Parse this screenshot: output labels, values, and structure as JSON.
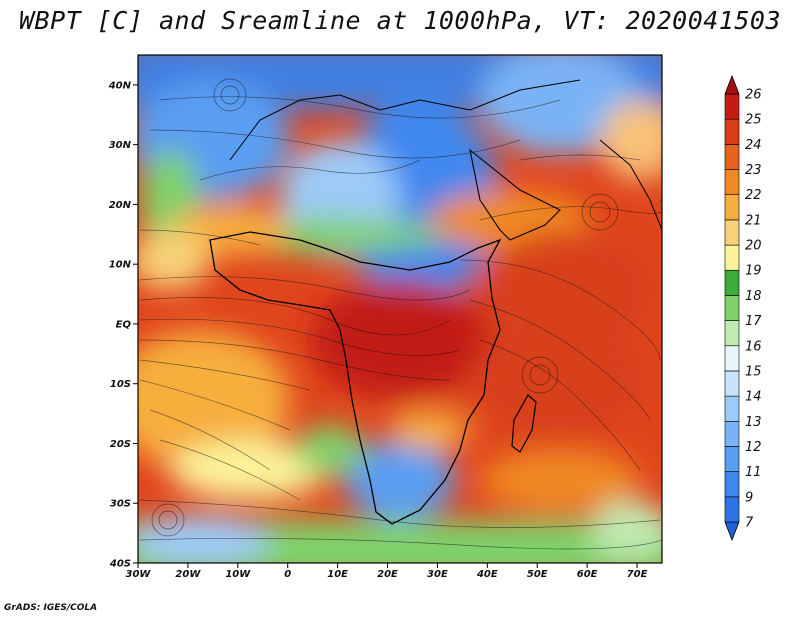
{
  "title": "WBPT [C] and Sreamline at 1000hPa, VT: 2020041503",
  "credit": "GrADS: IGES/COLA",
  "map": {
    "lon_range": [
      -30,
      75
    ],
    "lat_range": [
      -40,
      45
    ],
    "lon_ticks": [
      "30W",
      "20W",
      "10W",
      "0",
      "10E",
      "20E",
      "30E",
      "40E",
      "50E",
      "60E",
      "70E"
    ],
    "lat_ticks": [
      "40S",
      "30S",
      "20S",
      "10S",
      "EQ",
      "10N",
      "20N",
      "30N",
      "40N"
    ],
    "lon_tick_values": [
      -30,
      -20,
      -10,
      0,
      10,
      20,
      30,
      40,
      50,
      60,
      70
    ],
    "lat_tick_values": [
      -40,
      -30,
      -20,
      -10,
      0,
      10,
      20,
      30,
      40
    ]
  },
  "colorbar": {
    "labels": [
      "7",
      "9",
      "11",
      "12",
      "13",
      "14",
      "15",
      "16",
      "17",
      "18",
      "19",
      "20",
      "21",
      "22",
      "23",
      "24",
      "25",
      "26"
    ],
    "colors": [
      "#1f5fd8",
      "#2b72e6",
      "#3f88ee",
      "#5a9ef2",
      "#7ab3f5",
      "#9dcaf8",
      "#c6e3fb",
      "#e6f6fb",
      "#bfeab0",
      "#7fd26a",
      "#3aad3a",
      "#fbf39a",
      "#f8d278",
      "#f6ae3e",
      "#f08a20",
      "#e8641c",
      "#d8401a",
      "#c21c14",
      "#a50f0f"
    ]
  }
}
